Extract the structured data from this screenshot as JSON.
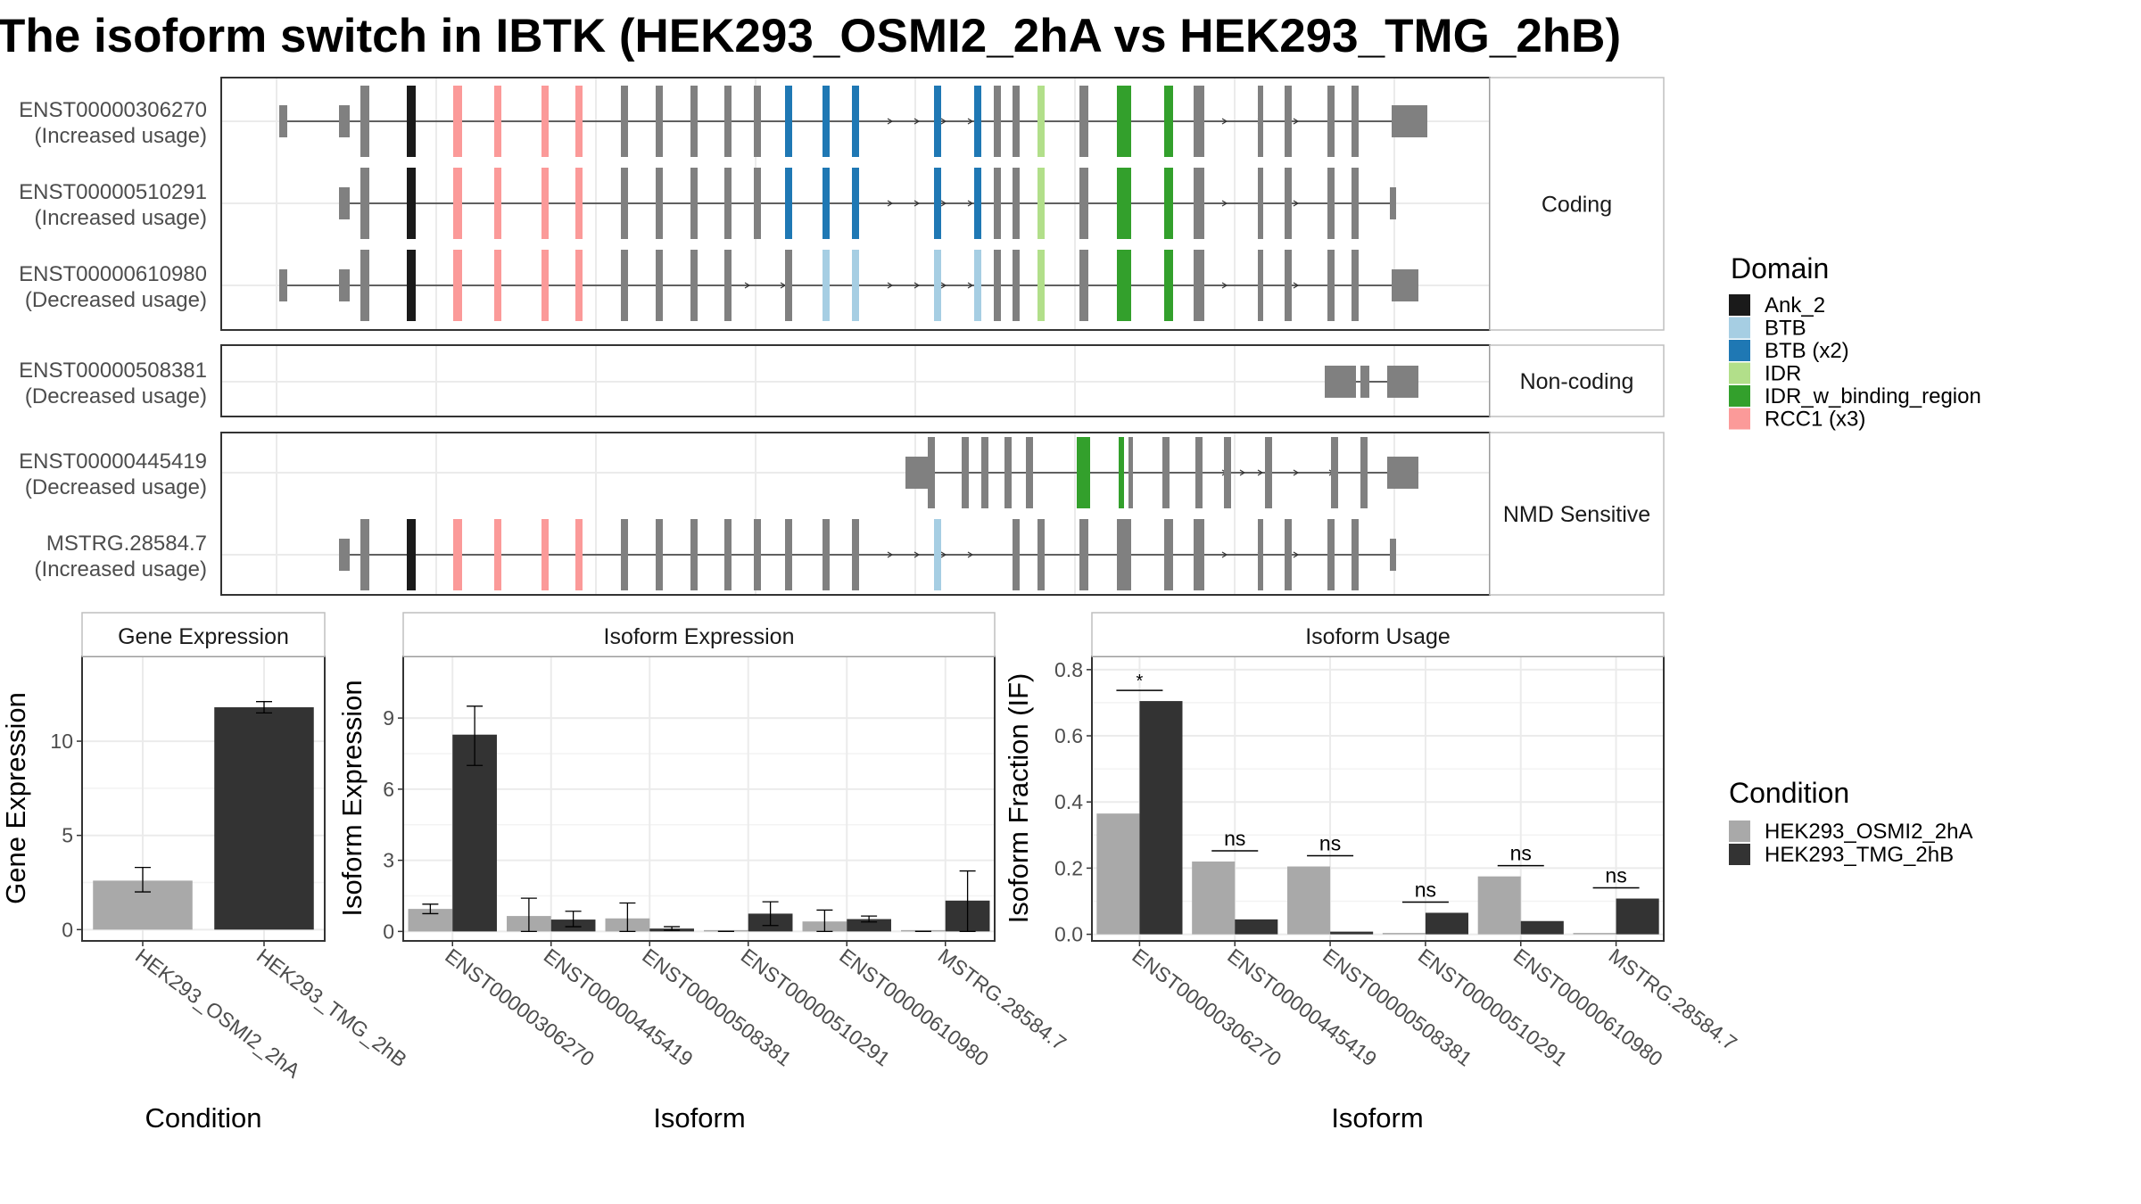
{
  "title": "The isoform switch in IBTK (HEK293_OSMI2_2hA vs HEK293_TMG_2hB)",
  "colors": {
    "exon": "#808080",
    "strip_bg": "#ffffff",
    "panel_border": "#333333",
    "grid": "#ebebeb",
    "condition_a": "#a9a9a9",
    "condition_b": "#333333"
  },
  "structure_panels": [
    {
      "label": "Coding",
      "transcripts": [
        {
          "id": "ENST00000306270",
          "usage": "(Increased usage)"
        },
        {
          "id": "ENST00000510291",
          "usage": "(Increased usage)"
        },
        {
          "id": "ENST00000610980",
          "usage": "(Decreased usage)"
        }
      ]
    },
    {
      "label": "Non-coding",
      "transcripts": [
        {
          "id": "ENST00000508381",
          "usage": "(Decreased usage)"
        }
      ]
    },
    {
      "label": "NMD Sensitive",
      "transcripts": [
        {
          "id": "ENST00000445419",
          "usage": "(Decreased usage)"
        },
        {
          "id": "MSTRG.28584.7",
          "usage": "(Increased usage)"
        }
      ]
    }
  ],
  "domain_legend": {
    "title": "Domain",
    "items": [
      {
        "name": "Ank_2",
        "color": "#1a1a1a"
      },
      {
        "name": "BTB",
        "color": "#a6cee3"
      },
      {
        "name": "BTB (x2)",
        "color": "#1f78b4"
      },
      {
        "name": "IDR",
        "color": "#b2df8a"
      },
      {
        "name": "IDR_w_binding_region",
        "color": "#33a02c"
      },
      {
        "name": "RCC1 (x3)",
        "color": "#fb9a99"
      }
    ]
  },
  "condition_legend": {
    "title": "Condition",
    "items": [
      {
        "name": "HEK293_OSMI2_2hA",
        "color": "#a9a9a9"
      },
      {
        "name": "HEK293_TMG_2hB",
        "color": "#333333"
      }
    ]
  },
  "chart_data": [
    {
      "type": "bar",
      "title": "Gene Expression",
      "xlabel": "Condition",
      "ylabel": "Gene Expression",
      "categories": [
        "HEK293_OSMI2_2hA",
        "HEK293_TMG_2hB"
      ],
      "values": [
        2.6,
        11.8
      ],
      "errors": [
        [
          2.0,
          3.3
        ],
        [
          11.5,
          12.1
        ]
      ],
      "ylim": [
        -0.6,
        14.5
      ],
      "yticks": [
        0,
        5,
        10
      ]
    },
    {
      "type": "bar",
      "title": "Isoform Expression",
      "xlabel": "Isoform",
      "ylabel": "Isoform Expression",
      "categories": [
        "ENST00000306270",
        "ENST00000445419",
        "ENST00000508381",
        "ENST00000510291",
        "ENST00000610980",
        "MSTRG.28584.7"
      ],
      "series": [
        {
          "name": "HEK293_OSMI2_2hA",
          "values": [
            0.95,
            0.65,
            0.55,
            0.0,
            0.42,
            0.0
          ],
          "errors": [
            [
              0.75,
              1.15
            ],
            [
              0.0,
              1.4
            ],
            [
              0.0,
              1.2
            ],
            [
              0.0,
              0.0
            ],
            [
              0.0,
              0.9
            ],
            [
              0.0,
              0.0
            ]
          ]
        },
        {
          "name": "HEK293_TMG_2hB",
          "values": [
            8.3,
            0.5,
            0.12,
            0.75,
            0.52,
            1.3
          ],
          "errors": [
            [
              7.0,
              9.5
            ],
            [
              0.2,
              0.85
            ],
            [
              0.05,
              0.2
            ],
            [
              0.25,
              1.25
            ],
            [
              0.4,
              0.65
            ],
            [
              0.0,
              2.55
            ]
          ]
        }
      ],
      "ylim": [
        -0.4,
        11.6
      ],
      "yticks": [
        0,
        3,
        6,
        9
      ]
    },
    {
      "type": "bar",
      "title": "Isoform Usage",
      "xlabel": "Isoform",
      "ylabel": "Isoform Fraction (IF)",
      "categories": [
        "ENST00000306270",
        "ENST00000445419",
        "ENST00000508381",
        "ENST00000510291",
        "ENST00000610980",
        "MSTRG.28584.7"
      ],
      "series": [
        {
          "name": "HEK293_OSMI2_2hA",
          "values": [
            0.365,
            0.22,
            0.205,
            0.002,
            0.175,
            0.0
          ]
        },
        {
          "name": "HEK293_TMG_2hB",
          "values": [
            0.705,
            0.045,
            0.008,
            0.065,
            0.04,
            0.108
          ]
        }
      ],
      "significance": [
        "*",
        "ns",
        "ns",
        "ns",
        "ns",
        "ns"
      ],
      "ylim": [
        -0.02,
        0.84
      ],
      "yticks": [
        0.0,
        0.2,
        0.4,
        0.6,
        0.8
      ]
    }
  ]
}
